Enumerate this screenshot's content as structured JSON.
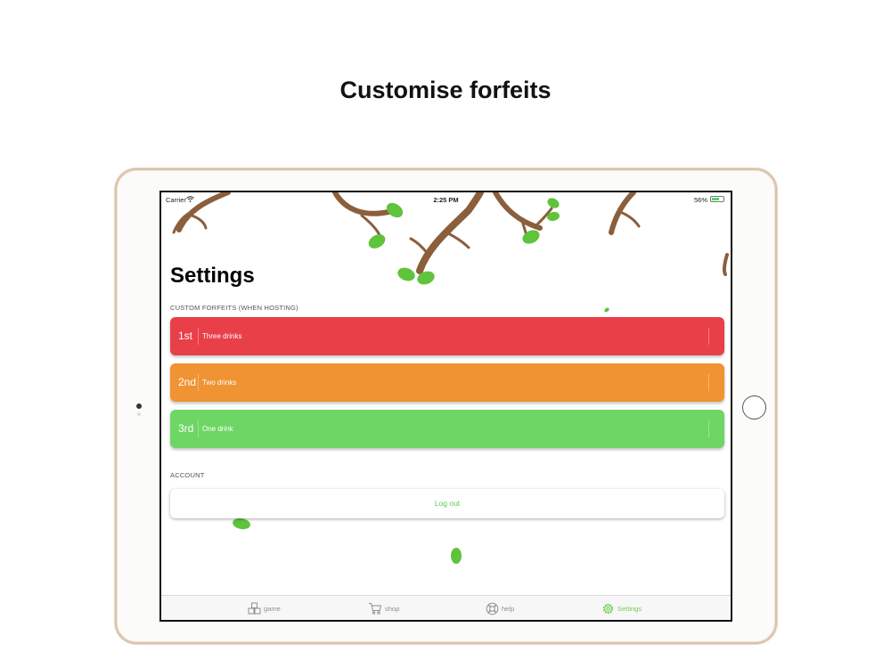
{
  "headline": "Customise forfeits",
  "status_bar": {
    "carrier": "Carrier",
    "time": "2:25 PM",
    "battery": "56%"
  },
  "settings": {
    "title": "Settings",
    "forfeits_header": "CUSTOM FORFEITS (WHEN HOSTING)",
    "forfeits": [
      {
        "rank": "1st",
        "value": "Three drinks",
        "color": "#e83f49"
      },
      {
        "rank": "2nd",
        "value": "Two drinks",
        "color": "#ef9333"
      },
      {
        "rank": "3rd",
        "value": "One drink",
        "color": "#6ed665"
      }
    ],
    "account_header": "ACCOUNT",
    "logout_label": "Log out"
  },
  "tab_bar": {
    "tabs": [
      {
        "label": "game",
        "icon": "game-blocks-icon"
      },
      {
        "label": "shop",
        "icon": "cart-icon"
      },
      {
        "label": "help",
        "icon": "lifebuoy-icon"
      },
      {
        "label": "Settings",
        "icon": "gear-icon",
        "active": true
      }
    ],
    "active_color": "#6ccf55",
    "inactive_color": "#8e8e93"
  }
}
